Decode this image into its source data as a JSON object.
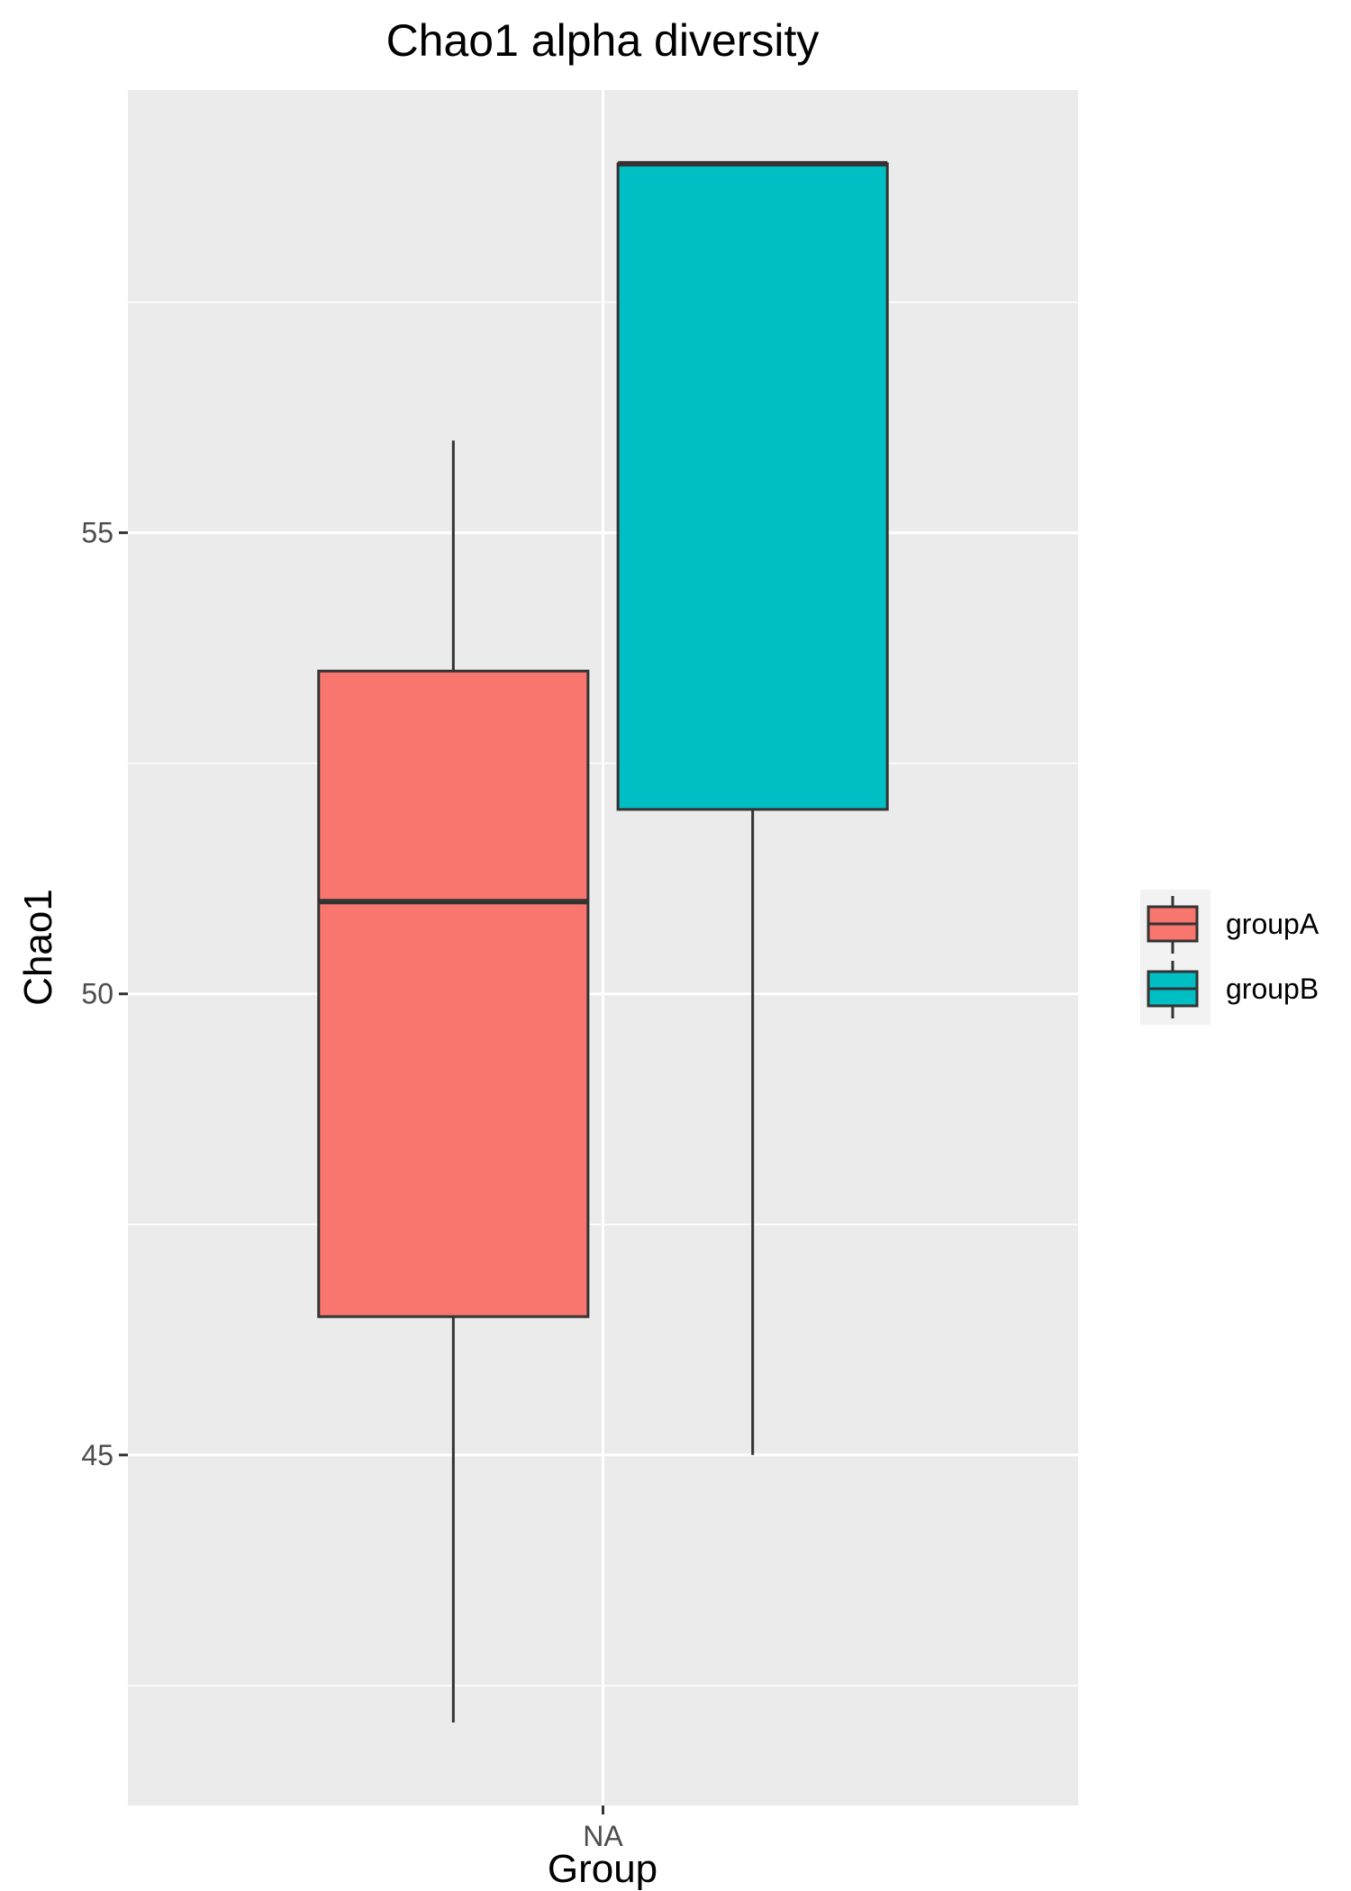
{
  "chart_data": {
    "type": "box",
    "title": "Chao1 alpha diversity",
    "xlabel": "Group",
    "ylabel": "Chao1",
    "categories": [
      "NA"
    ],
    "ylim": [
      41.2,
      59.8
    ],
    "yticks": [
      45,
      50,
      55
    ],
    "minor_gridlines": true,
    "grid": true,
    "legend_position": "right",
    "colors": {
      "panel_bg": "#ebebeb",
      "grid": "#ffffff",
      "box_outline": "#333333",
      "groupA": "#f8766d",
      "groupB": "#00bfc4",
      "legend_bg": "#f2f2f2"
    },
    "series": [
      {
        "name": "groupA",
        "category": "NA",
        "min": 42.1,
        "q1": 46.5,
        "median": 51.0,
        "q3": 53.5,
        "max": 56.0
      },
      {
        "name": "groupB",
        "category": "NA",
        "min": 45.0,
        "q1": 52.0,
        "median": 59.0,
        "q3": 59.0,
        "max": 59.0
      }
    ]
  }
}
